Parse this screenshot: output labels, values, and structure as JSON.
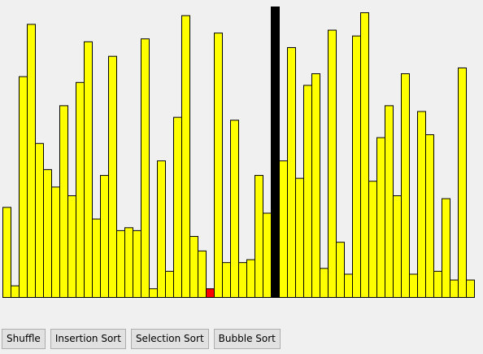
{
  "buttons": {
    "shuffle": "Shuffle",
    "insertion_sort": "Insertion Sort",
    "selection_sort": "Selection Sort",
    "bubble_sort": "Bubble Sort"
  },
  "colors": {
    "bar_fill": "#ffff00",
    "bar_stroke": "#000000",
    "highlight_fill": "#ff0000",
    "active_fill": "#000000",
    "background": "#f0f0f0"
  },
  "chart_data": {
    "type": "bar",
    "ylim": [
      0,
      100
    ],
    "values": [
      31,
      4,
      76,
      94,
      53,
      44,
      38,
      66,
      35,
      74,
      88,
      27,
      42,
      83,
      23,
      24,
      23,
      89,
      3,
      47,
      9,
      62,
      97,
      21,
      16,
      3,
      91,
      12,
      61,
      12,
      13,
      42,
      29,
      100,
      47,
      86,
      41,
      73,
      77,
      10,
      92,
      19,
      8,
      90,
      98,
      40,
      55,
      66,
      35,
      77,
      8,
      64,
      56,
      9,
      34,
      6,
      79,
      6
    ],
    "highlight_index": 25,
    "active_index": 33
  }
}
